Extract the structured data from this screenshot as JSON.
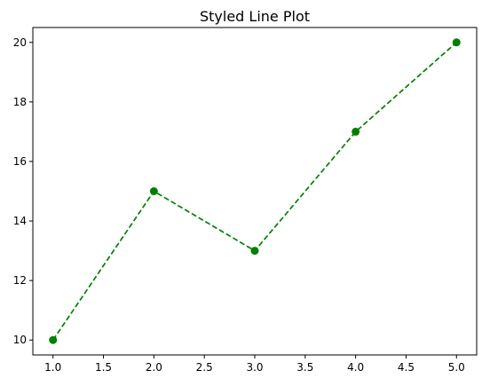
{
  "chart_data": {
    "type": "line",
    "title": "Styled Line Plot",
    "xlabel": "",
    "ylabel": "",
    "x": [
      1,
      2,
      3,
      4,
      5
    ],
    "series": [
      {
        "values": [
          10,
          15,
          13,
          17,
          20
        ],
        "color": "#008000",
        "line_style": "dashed",
        "marker": "circle"
      }
    ],
    "xlim": [
      0.8,
      5.2
    ],
    "ylim": [
      9.5,
      20.5
    ],
    "xticks": [
      1.0,
      1.5,
      2.0,
      2.5,
      3.0,
      3.5,
      4.0,
      4.5,
      5.0
    ],
    "xtick_labels": [
      "1.0",
      "1.5",
      "2.0",
      "2.5",
      "3.0",
      "3.5",
      "4.0",
      "4.5",
      "5.0"
    ],
    "yticks": [
      10,
      12,
      14,
      16,
      18,
      20
    ],
    "ytick_labels": [
      "10",
      "12",
      "14",
      "16",
      "18",
      "20"
    ],
    "grid": false,
    "legend": "none"
  }
}
